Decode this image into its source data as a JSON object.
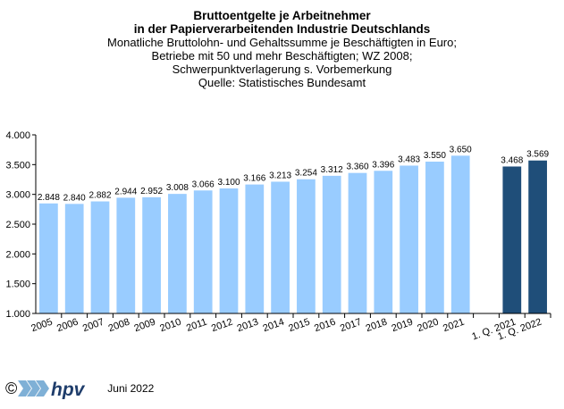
{
  "header": {
    "title_line1": "Bruttoentgelte  je Arbeitnehmer",
    "title_line2": "in der Papierverarbeitenden Industrie Deutschlands",
    "sub_line1": "Monatliche Bruttolohn- und Gehaltssumme je Beschäftigten  in Euro;",
    "sub_line2": "Betriebe mit 50 und mehr Beschäftigten; WZ 2008;",
    "sub_line3": "Schwerpunktverlagerung  s. Vorbemerkung",
    "sub_line4": "Quelle:  Statistisches Bundesamt"
  },
  "footer": {
    "copyright": "©",
    "logo_text": "hpv",
    "date": "Juni 2022"
  },
  "colors": {
    "annual_bar": "#99ccff",
    "quarter_bar": "#1f4e79",
    "logo_stripes": "#7fb0d6",
    "logo_text": "#1f3d6b"
  },
  "chart_data": {
    "type": "bar",
    "categories": [
      "2005",
      "2006",
      "2007",
      "2008",
      "2009",
      "2010",
      "2011",
      "2012",
      "2013",
      "2014",
      "2015",
      "2016",
      "2017",
      "2018",
      "2019",
      "2020",
      "2021",
      "",
      "1. Q. 2021",
      "1. Q. 2022"
    ],
    "values": [
      2848,
      2840,
      2882,
      2944,
      2952,
      3008,
      3066,
      3100,
      3166,
      3213,
      3254,
      3312,
      3360,
      3396,
      3483,
      3550,
      3650,
      null,
      3468,
      3569
    ],
    "data_labels": [
      "2.848",
      "2.840",
      "2.882",
      "2.944",
      "2.952",
      "3.008",
      "3.066",
      "3.100",
      "3.166",
      "3.213",
      "3.254",
      "3.312",
      "3.360",
      "3.396",
      "3.483",
      "3.550",
      "3.650",
      "",
      "3.468",
      "3.569"
    ],
    "highlight_indices": [
      18,
      19
    ],
    "ylim": [
      1000,
      4000
    ],
    "yticks": [
      1000,
      1500,
      2000,
      2500,
      3000,
      3500,
      4000
    ],
    "ytick_labels": [
      "1.000",
      "1.500",
      "2.000",
      "2.500",
      "3.000",
      "3.500",
      "4.000"
    ],
    "xlabel": "",
    "ylabel": "",
    "grid": false,
    "legend": "none"
  }
}
